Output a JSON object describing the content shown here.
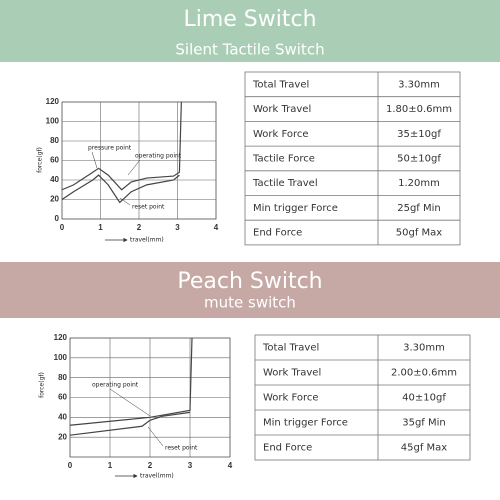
{
  "sections": [
    {
      "title": "Lime Switch",
      "subtitle": "Silent Tactile Switch",
      "chart": {
        "type": "line",
        "y_label": "force(gf)",
        "x_label": "travel(mm)",
        "xlim": [
          0,
          4
        ],
        "ylim": [
          0,
          120
        ],
        "xticks": [
          0,
          1,
          2,
          3,
          4
        ],
        "yticks": [
          0,
          20,
          40,
          60,
          80,
          100,
          120
        ],
        "annotations": [
          "pressure point",
          "operating point",
          "reset point"
        ],
        "series": [
          {
            "color": "#444444",
            "x": [
              0,
              0.3,
              0.8,
              0.95,
              1.2,
              1.55,
              1.8,
              2.2,
              2.9,
              3.05,
              3.1
            ],
            "values": [
              30,
              35,
              48,
              52,
              45,
              30,
              38,
              42,
              44,
              48,
              120
            ]
          },
          {
            "color": "#444444",
            "x": [
              0,
              0.3,
              0.8,
              0.95,
              1.2,
              1.5,
              1.8,
              2.2,
              2.9,
              3.05
            ],
            "values": [
              20,
              28,
              40,
              45,
              35,
              17,
              28,
              35,
              40,
              45
            ]
          }
        ]
      },
      "table": {
        "rows": [
          [
            "Total Travel",
            "3.30mm"
          ],
          [
            "Work Travel",
            "1.80±0.6mm"
          ],
          [
            "Work Force",
            "35±10gf"
          ],
          [
            "Tactile Force",
            "50±10gf"
          ],
          [
            "Tactile Travel",
            "1.20mm"
          ],
          [
            "Min trigger Force",
            "25gf Min"
          ],
          [
            "End Force",
            "50gf Max"
          ]
        ]
      }
    },
    {
      "title": "Peach Switch",
      "subtitle": "mute switch",
      "chart": {
        "type": "line",
        "y_label": "force(gf)",
        "x_label": "travel(mm)",
        "xlim": [
          0,
          4
        ],
        "ylim": [
          0,
          120
        ],
        "xticks": [
          0,
          1,
          2,
          3,
          4
        ],
        "yticks": [
          20,
          40,
          60,
          80,
          100,
          120
        ],
        "annotations": [
          "operating point",
          "reset point"
        ],
        "series": [
          {
            "color": "#444444",
            "x": [
              0,
              2,
              3,
              3.05
            ],
            "values": [
              32,
              40,
              47,
              120
            ]
          },
          {
            "color": "#444444",
            "x": [
              0,
              1.8,
              2,
              2.3,
              3
            ],
            "values": [
              22,
              31,
              37,
              41,
              45
            ]
          }
        ]
      },
      "table": {
        "rows": [
          [
            "Total Travel",
            "3.30mm"
          ],
          [
            "Work Travel",
            "2.00±0.6mm"
          ],
          [
            "Work Force",
            "40±10gf"
          ],
          [
            "Min trigger Force",
            "35gf Min"
          ],
          [
            "End Force",
            "45gf Max"
          ]
        ]
      }
    }
  ]
}
